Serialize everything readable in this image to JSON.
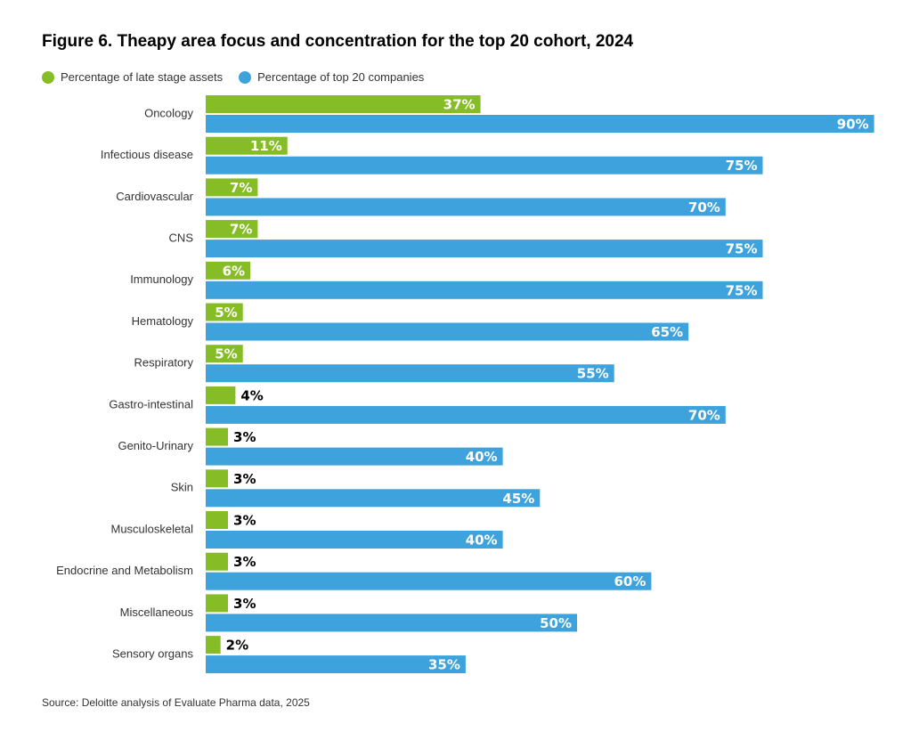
{
  "title": "Figure 6. Theapy area focus and concentration for the top 20 cohort, 2024",
  "source": "Source: Deloitte analysis of Evaluate Pharma data, 2025",
  "colors": {
    "green": "#86bc25",
    "blue": "#3ea3dc"
  },
  "chart_data": {
    "type": "bar",
    "orientation": "horizontal",
    "value_unit": "%",
    "categories": [
      "Oncology",
      "Infectious disease",
      "Cardiovascular",
      "CNS",
      "Immunology",
      "Hematology",
      "Respiratory",
      "Gastro-intestinal",
      "Genito-Urinary",
      "Skin",
      "Musculoskeletal",
      "Endocrine and Metabolism",
      "Miscellaneous",
      "Sensory organs"
    ],
    "series": [
      {
        "name": "Percentage of late stage assets",
        "color": "#86bc25",
        "values": [
          37,
          11,
          7,
          7,
          6,
          5,
          5,
          4,
          3,
          3,
          3,
          3,
          3,
          2
        ]
      },
      {
        "name": "Percentage of top 20 companies",
        "color": "#3ea3dc",
        "values": [
          90,
          75,
          70,
          75,
          75,
          65,
          55,
          70,
          40,
          45,
          40,
          60,
          50,
          35
        ]
      }
    ],
    "legend_position": "top-left",
    "grid": false
  }
}
